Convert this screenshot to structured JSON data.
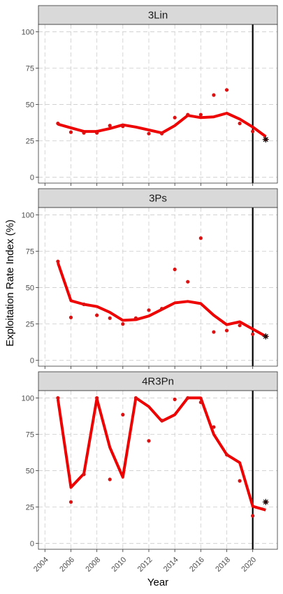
{
  "chart_data": {
    "type": "line",
    "xlabel": "Year",
    "ylabel": "Exploitation Rate Index (%)",
    "xlim": [
      2003.5,
      2021.9
    ],
    "ylim": [
      -4,
      105
    ],
    "x_ticks": [
      2004,
      2006,
      2008,
      2010,
      2012,
      2014,
      2016,
      2018,
      2020
    ],
    "y_ticks": [
      0,
      25,
      50,
      75,
      100
    ],
    "vertical_line_x": 2020,
    "grid": true,
    "colors": {
      "smooth_line": "#ee0000",
      "points": "#dd1111",
      "marker": "#111111",
      "strip_bg": "#d9d9d9",
      "grid": "#cccccc",
      "vline": "#000000"
    },
    "panels": [
      {
        "title": "3Lin",
        "points": [
          [
            2005,
            37
          ],
          [
            2006,
            31
          ],
          [
            2007,
            30.5
          ],
          [
            2008,
            30.5
          ],
          [
            2009,
            35.5
          ],
          [
            2010,
            35
          ],
          [
            2011,
            null
          ],
          [
            2012,
            30
          ],
          [
            2013,
            30
          ],
          [
            2014,
            41
          ],
          [
            2015,
            43
          ],
          [
            2016,
            43
          ],
          [
            2017,
            56.5
          ],
          [
            2018,
            60
          ],
          [
            2019,
            37
          ],
          [
            2020,
            31.5
          ]
        ],
        "line": [
          [
            2005,
            36.5
          ],
          [
            2006,
            34
          ],
          [
            2007,
            31.5
          ],
          [
            2008,
            31.5
          ],
          [
            2009,
            33.5
          ],
          [
            2010,
            36
          ],
          [
            2011,
            34.5
          ],
          [
            2012,
            32.5
          ],
          [
            2013,
            30.5
          ],
          [
            2014,
            35.5
          ],
          [
            2015,
            42.5
          ],
          [
            2016,
            41
          ],
          [
            2017,
            41.5
          ],
          [
            2018,
            44
          ],
          [
            2019,
            40
          ],
          [
            2020,
            34.5
          ],
          [
            2021,
            28
          ]
        ],
        "star": [
          2021,
          26
        ]
      },
      {
        "title": "3Ps",
        "points": [
          [
            2005,
            68
          ],
          [
            2006,
            29.5
          ],
          [
            2007,
            38.5
          ],
          [
            2008,
            31
          ],
          [
            2009,
            29
          ],
          [
            2010,
            25
          ],
          [
            2011,
            29
          ],
          [
            2012,
            34.5
          ],
          [
            2013,
            35.5
          ],
          [
            2014,
            62.5
          ],
          [
            2015,
            54
          ],
          [
            2016,
            84
          ],
          [
            2017,
            19.5
          ],
          [
            2018,
            20.5
          ],
          [
            2019,
            24
          ],
          [
            2020,
            18
          ]
        ],
        "line": [
          [
            2005,
            67
          ],
          [
            2006,
            41
          ],
          [
            2007,
            38.5
          ],
          [
            2008,
            37
          ],
          [
            2009,
            33
          ],
          [
            2010,
            27.5
          ],
          [
            2011,
            28
          ],
          [
            2012,
            30.5
          ],
          [
            2013,
            35
          ],
          [
            2014,
            39.5
          ],
          [
            2015,
            40.5
          ],
          [
            2016,
            39
          ],
          [
            2017,
            31
          ],
          [
            2018,
            24.5
          ],
          [
            2019,
            26.5
          ],
          [
            2020,
            21.5
          ],
          [
            2021,
            16.5
          ]
        ],
        "star": [
          2021,
          16.5
        ]
      },
      {
        "title": "4R3Pn",
        "points": [
          [
            2005,
            100
          ],
          [
            2006,
            28.5
          ],
          [
            2007,
            47.5
          ],
          [
            2008,
            100
          ],
          [
            2009,
            44
          ],
          [
            2010,
            88.5
          ],
          [
            2011,
            100
          ],
          [
            2012,
            70.5
          ],
          [
            2013,
            84.5
          ],
          [
            2014,
            99
          ],
          [
            2015,
            100
          ],
          [
            2016,
            97
          ],
          [
            2017,
            80
          ],
          [
            2018,
            61
          ],
          [
            2019,
            43
          ],
          [
            2020,
            19
          ]
        ],
        "line": [
          [
            2005,
            99
          ],
          [
            2006,
            38.5
          ],
          [
            2007,
            48
          ],
          [
            2008,
            99.5
          ],
          [
            2009,
            66
          ],
          [
            2010,
            45.5
          ],
          [
            2011,
            100
          ],
          [
            2012,
            94
          ],
          [
            2013,
            84
          ],
          [
            2014,
            88.5
          ],
          [
            2015,
            100
          ],
          [
            2016,
            100
          ],
          [
            2017,
            75
          ],
          [
            2018,
            61
          ],
          [
            2019,
            55.5
          ],
          [
            2020,
            25.5
          ],
          [
            2021,
            23
          ]
        ],
        "star": [
          2021,
          28.5
        ]
      }
    ]
  }
}
